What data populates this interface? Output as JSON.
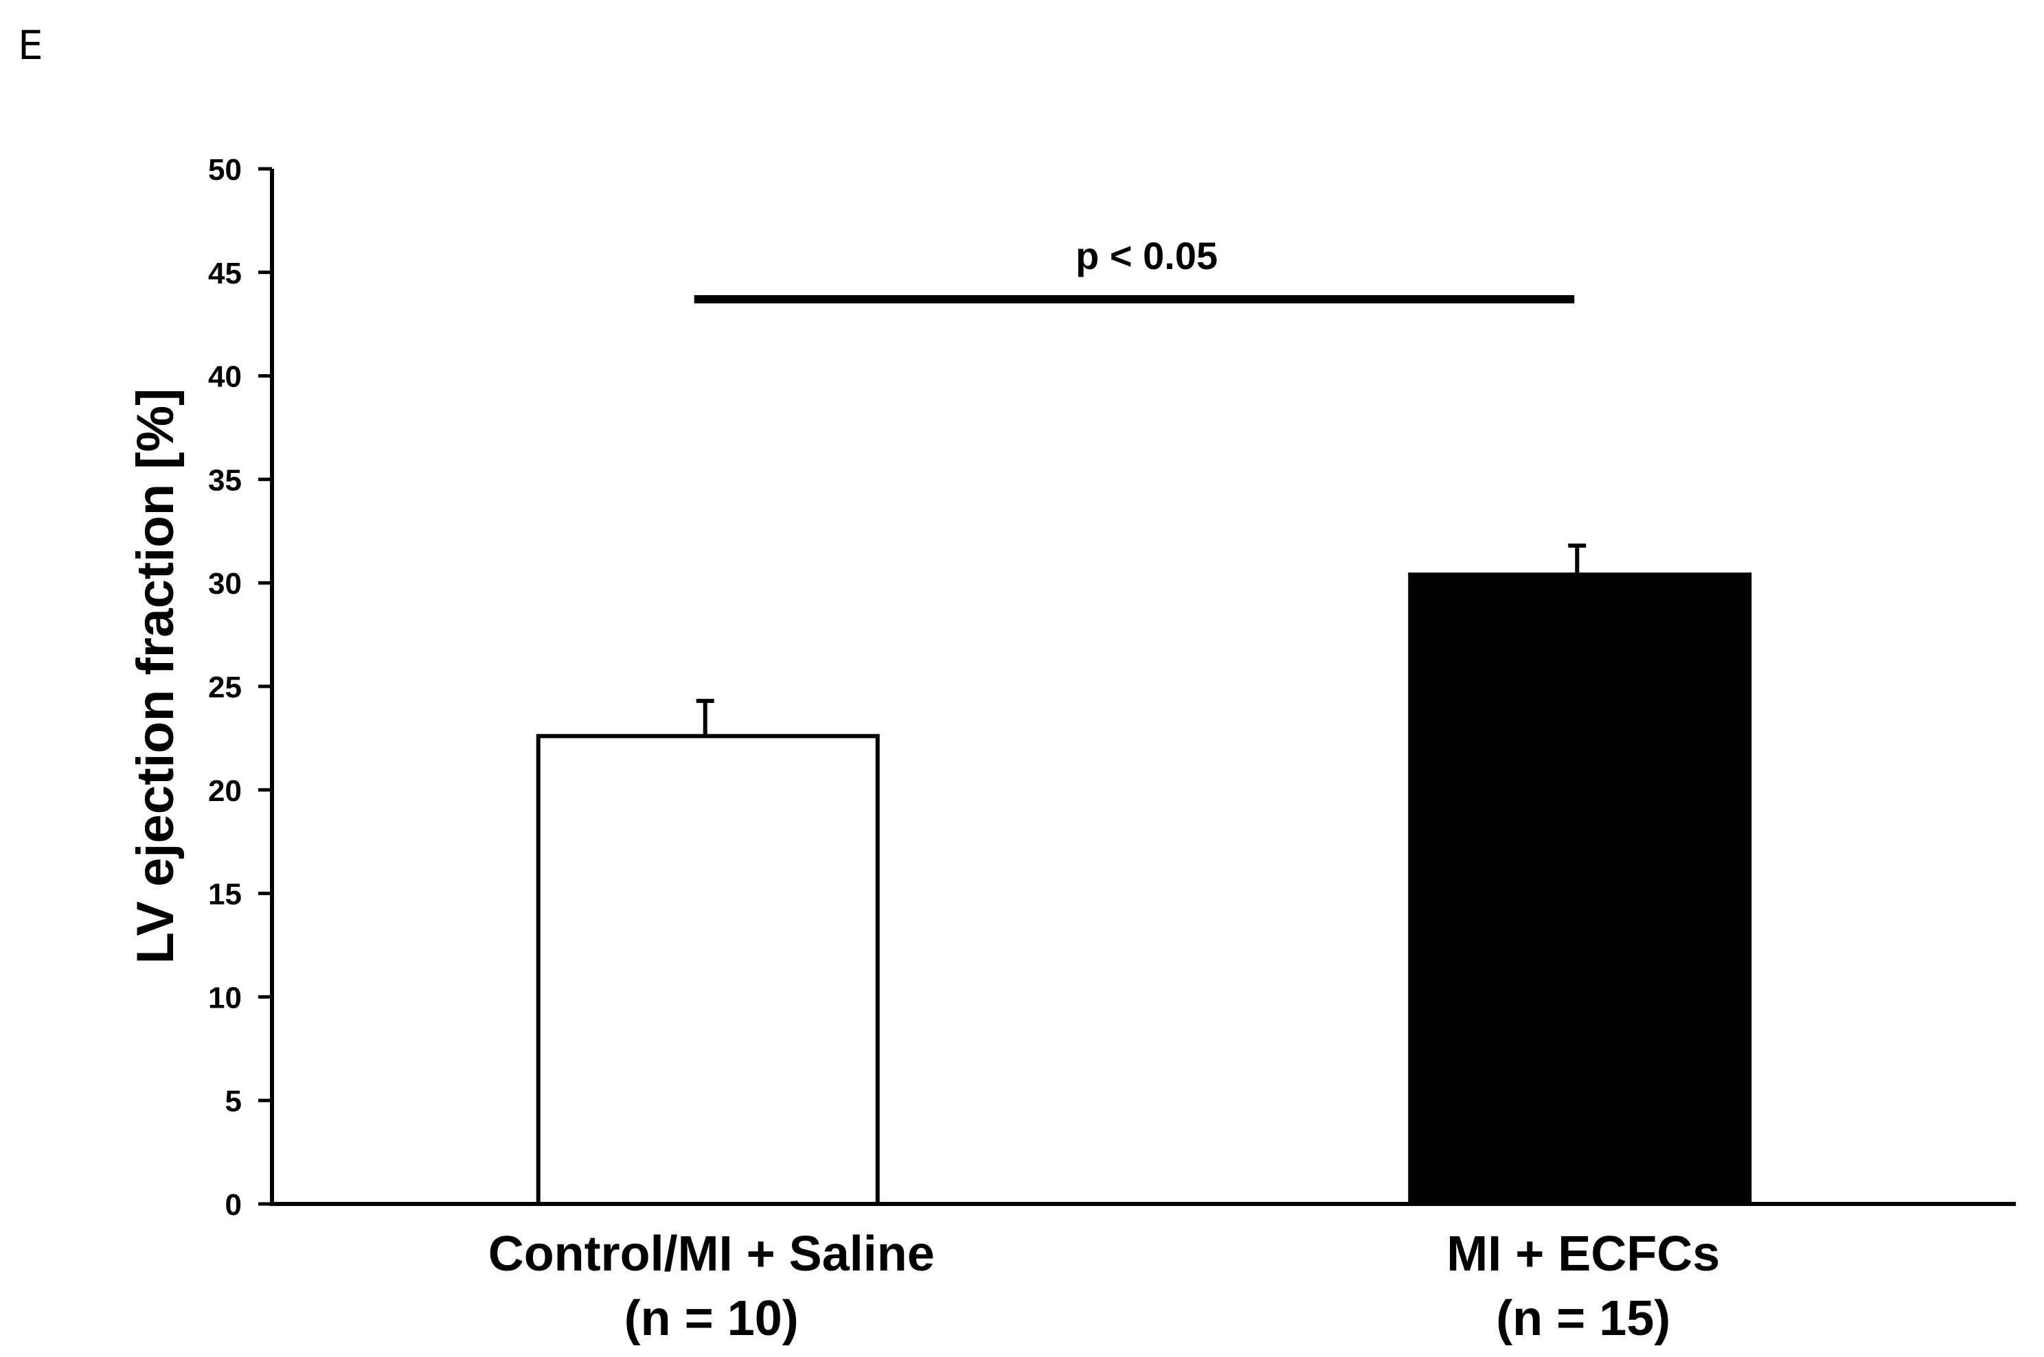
{
  "panel_label": "E",
  "chart_data": {
    "type": "bar",
    "title": "",
    "ylabel": "LV ejection fraction [%]",
    "xlabel": "",
    "ylim": [
      0,
      50
    ],
    "yticks": [
      0,
      5,
      10,
      15,
      20,
      25,
      30,
      35,
      40,
      45,
      50
    ],
    "categories": [
      {
        "line1": "Control/MI + Saline",
        "line2": "(n = 10)"
      },
      {
        "line1": "MI + ECFCs",
        "line2": "(n = 15)"
      }
    ],
    "values": [
      22.6,
      30.4
    ],
    "errors": [
      1.7,
      1.4
    ],
    "bar_colors": [
      "#ffffff",
      "#000000"
    ],
    "significance": {
      "label": "p < 0.05",
      "y": 43.7,
      "between": [
        0,
        1
      ]
    },
    "grid": false,
    "legend": "none"
  }
}
